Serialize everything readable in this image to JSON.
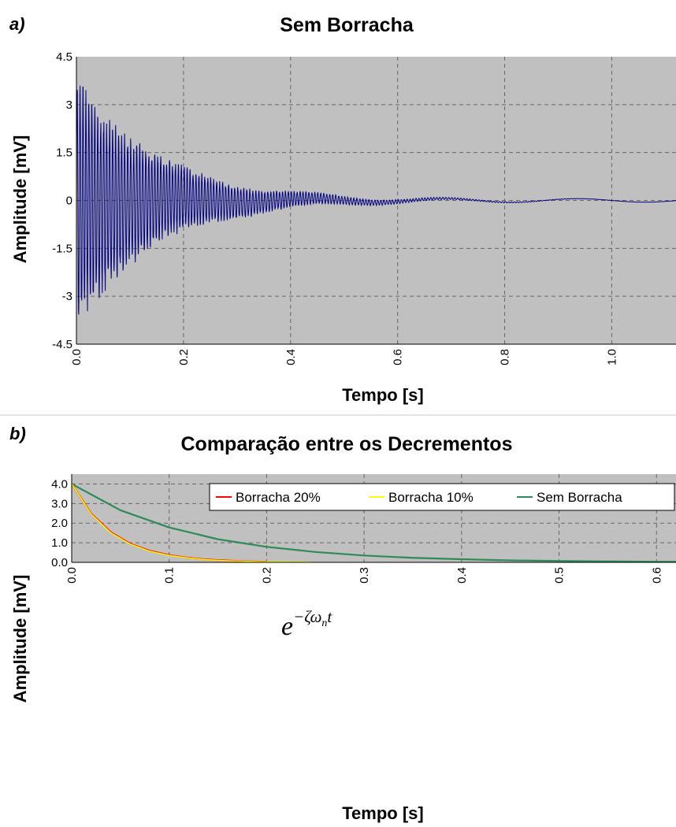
{
  "chart_data": [
    {
      "panel": "a)",
      "type": "line",
      "title": "Sem Borracha",
      "xlabel": "Tempo [s]",
      "ylabel": "Amplitude [mV]",
      "xlim": [
        0,
        1.12
      ],
      "ylim": [
        -4.5,
        4.5
      ],
      "xticks": [
        0.0,
        0.2,
        0.4,
        0.6,
        0.8,
        1.0
      ],
      "xtick_labels": [
        "0.0",
        "0.2",
        "0.4",
        "0.6",
        "0.8",
        "1.0"
      ],
      "yticks": [
        4.5,
        3,
        1.5,
        0,
        -1.5,
        -3,
        -4.5
      ],
      "ytick_labels": [
        "4.5",
        "3",
        "1.5",
        "0",
        "-1.5",
        "-3",
        "-4.5"
      ],
      "grid": true,
      "series": [
        {
          "color": "#000080",
          "signal": "decaying oscillation",
          "initial_amplitude": 4.1,
          "damping_rate": 6.8,
          "frequency_hz": 180,
          "x_range": [
            0,
            1.12
          ]
        }
      ]
    },
    {
      "panel": "b)",
      "type": "line",
      "title": "Comparação entre os Decrementos",
      "xlabel": "Tempo [s]",
      "ylabel": "Amplitude [mV]",
      "xlim": [
        0,
        0.62
      ],
      "ylim": [
        0,
        4.5
      ],
      "xticks": [
        0.0,
        0.1,
        0.2,
        0.3,
        0.4,
        0.5,
        0.6
      ],
      "xtick_labels": [
        "0.0",
        "0.1",
        "0.2",
        "0.3",
        "0.4",
        "0.5",
        "0.6"
      ],
      "yticks": [
        0,
        1,
        2,
        3,
        4
      ],
      "ytick_labels": [
        "0.0",
        "1.0",
        "2.0",
        "3.0",
        "4.0"
      ],
      "grid": true,
      "legend_position": "top-right",
      "annotation": {
        "base": "e",
        "exponent": "−ζω",
        "subscript": "n",
        "exponent_tail": "t"
      },
      "series": [
        {
          "name": "Borracha 20%",
          "color": "#ff0000",
          "x": [
            0,
            0.02,
            0.04,
            0.06,
            0.08,
            0.1,
            0.12,
            0.14,
            0.16,
            0.18,
            0.2
          ],
          "y": [
            4.0,
            2.48,
            1.54,
            0.95,
            0.59,
            0.37,
            0.23,
            0.14,
            0.09,
            0.05,
            0.03
          ]
        },
        {
          "name": "Borracha 10%",
          "color": "#ffff00",
          "x": [
            0,
            0.02,
            0.04,
            0.06,
            0.08,
            0.1,
            0.12,
            0.14,
            0.16,
            0.18,
            0.2,
            0.22,
            0.245
          ],
          "y": [
            4.0,
            2.46,
            1.51,
            0.93,
            0.57,
            0.35,
            0.22,
            0.13,
            0.08,
            0.05,
            0.03,
            0.02,
            0.01
          ]
        },
        {
          "name": "Sem Borracha",
          "color": "#2e8b57",
          "x": [
            0,
            0.05,
            0.1,
            0.15,
            0.2,
            0.25,
            0.3,
            0.35,
            0.4,
            0.45,
            0.5,
            0.55,
            0.6,
            0.62
          ],
          "y": [
            4.0,
            2.66,
            1.78,
            1.18,
            0.79,
            0.53,
            0.35,
            0.23,
            0.16,
            0.1,
            0.07,
            0.05,
            0.03,
            0.03
          ]
        }
      ]
    }
  ]
}
